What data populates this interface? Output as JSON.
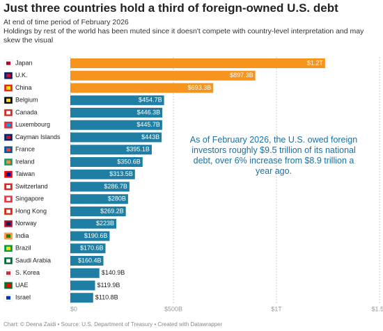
{
  "chart_data": {
    "type": "hbar",
    "title": "Just three countries hold a third of foreign-owned U.S. debt",
    "subtitle": [
      "At end of time period of February 2026",
      "Holdings by rest of the world has been muted since it doesn't compete with country-level interpretation and may skew the visual"
    ],
    "annotation": "As of February 2026, the U.S. owed foreign investors roughly $9.5 trillion of its national debt, over 6% increase from $8.9 trillion a year ago.",
    "footer": "Chart: © Deena Zaidi • Source: U.S. Department of Treasury • Created with Datawrapper",
    "categories": [
      "Japan",
      "U.K.",
      "China",
      "Belgium",
      "Canada",
      "Luxembourg",
      "Cayman Islands",
      "France",
      "Ireland",
      "Taiwan",
      "Switzerland",
      "Singapore",
      "Hong Kong",
      "Norway",
      "India",
      "Brazil",
      "Saudi Arabia",
      "S. Korea",
      "UAE",
      "Israel"
    ],
    "values": [
      1236,
      897.3,
      693.3,
      454.7,
      446.3,
      445.7,
      443,
      395.1,
      350.6,
      313.5,
      286.7,
      280,
      269.2,
      223,
      190.6,
      170.6,
      160.4,
      140.9,
      119.9,
      110.8
    ],
    "value_labels": [
      "$1.2T",
      "$897.3B",
      "$693.3B",
      "$454.7B",
      "$446.3B",
      "$445.7B",
      "$443B",
      "$395.1B",
      "$350.6B",
      "$313.5B",
      "$286.7B",
      "$280B",
      "$269.2B",
      "$223B",
      "$190.6B",
      "$170.6B",
      "$160.4B",
      "$140.9B",
      "$119.9B",
      "$110.8B"
    ],
    "colors": [
      "#f7941d",
      "#f7941d",
      "#f7941d",
      "#1f7ea3",
      "#1f7ea3",
      "#1f7ea3",
      "#1f7ea3",
      "#1f7ea3",
      "#1f7ea3",
      "#1f7ea3",
      "#1f7ea3",
      "#1f7ea3",
      "#1f7ea3",
      "#1f7ea3",
      "#1f7ea3",
      "#1f7ea3",
      "#1f7ea3",
      "#1f7ea3",
      "#1f7ea3",
      "#1f7ea3"
    ],
    "xlim": [
      0,
      1500
    ],
    "xticks": [
      {
        "value": 0,
        "label": "$0"
      },
      {
        "value": 500,
        "label": "$500B"
      },
      {
        "value": 1000,
        "label": "$1T"
      },
      {
        "value": 1500,
        "label": "$1.5T"
      }
    ],
    "grid": true
  }
}
